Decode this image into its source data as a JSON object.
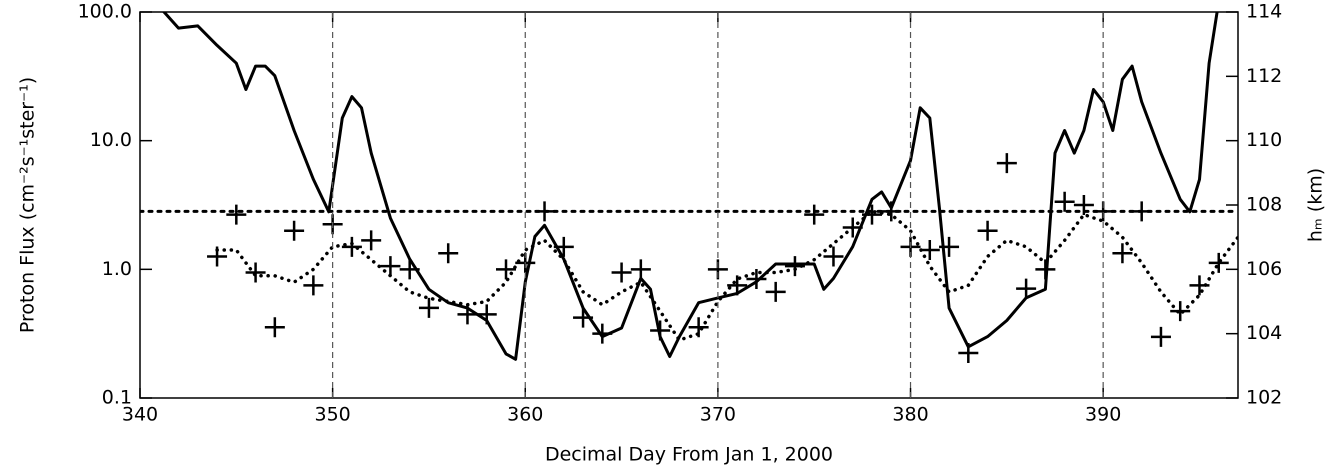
{
  "chart_data": {
    "type": "line",
    "xlabel": "Decimal Day From Jan 1, 2000",
    "ylabel": "Proton Flux (cm⁻²s⁻¹ster⁻¹)",
    "y2label": "hₘ (km)",
    "xlim": [
      340,
      397
    ],
    "xticks": [
      340,
      350,
      360,
      370,
      380,
      390
    ],
    "ylim": [
      0.1,
      100
    ],
    "yscale": "log",
    "yticks": [
      0.1,
      {
        "value": 1,
        "label": "1.0"
      },
      {
        "value": 10,
        "label": "10.0"
      },
      {
        "value": 100,
        "label": "100.0"
      }
    ],
    "y2lim": [
      102,
      114
    ],
    "y2ticks": [
      102,
      104,
      106,
      108,
      110,
      112,
      114
    ],
    "grid": "x-dashed",
    "hlines": [
      {
        "value": 107.8,
        "axis": "y2",
        "style": "dotted",
        "color": "#000000"
      }
    ],
    "series": [
      {
        "style": "solid",
        "color": "#000000",
        "x": [
          341,
          342,
          343,
          344,
          345,
          345.5,
          346,
          346.5,
          347,
          348,
          349,
          349.8,
          350.5,
          351,
          351.5,
          352,
          353,
          354,
          355,
          356,
          357,
          358,
          359,
          359.5,
          360,
          360.5,
          361,
          362,
          363,
          364,
          365,
          366,
          366.5,
          367,
          367.5,
          368,
          369,
          370,
          371,
          372,
          373,
          374,
          375,
          375.5,
          376,
          377,
          378,
          378.5,
          379,
          380,
          380.5,
          381,
          381.5,
          382,
          383,
          384,
          385,
          386,
          387,
          387.5,
          388,
          388.5,
          389,
          389.5,
          390,
          390.5,
          391,
          391.5,
          392,
          393,
          394,
          394.5,
          395,
          395.5,
          396
        ],
        "values": [
          110,
          75,
          78,
          55,
          40,
          25,
          38,
          38,
          32,
          12,
          5,
          2.8,
          15,
          22,
          18,
          8,
          2.5,
          1.2,
          0.7,
          0.55,
          0.5,
          0.4,
          0.22,
          0.2,
          0.8,
          1.8,
          2.2,
          1.2,
          0.5,
          0.3,
          0.35,
          0.85,
          0.7,
          0.3,
          0.21,
          0.3,
          0.55,
          0.6,
          0.65,
          0.8,
          1.1,
          1.1,
          1.1,
          0.7,
          0.85,
          1.5,
          3.5,
          4,
          3,
          7,
          18,
          15,
          3,
          0.5,
          0.25,
          0.3,
          0.4,
          0.6,
          0.7,
          8,
          12,
          8,
          12,
          25,
          20,
          12,
          30,
          38,
          20,
          8,
          3.5,
          2.8,
          5,
          40,
          120
        ]
      },
      {
        "style": "dotted",
        "axis": "y2",
        "color": "#000000",
        "x": [
          344,
          345,
          346,
          347,
          348,
          349,
          350,
          351,
          352,
          353,
          354,
          355,
          356,
          357,
          358,
          359,
          360,
          361,
          362,
          363,
          364,
          365,
          366,
          367,
          368,
          369,
          370,
          371,
          372,
          373,
          374,
          375,
          376,
          377,
          378,
          379,
          380,
          381,
          382,
          383,
          384,
          385,
          386,
          387,
          388,
          389,
          390,
          391,
          392,
          393,
          394,
          395,
          396,
          397
        ],
        "values": [
          106.6,
          106.6,
          105.8,
          105.8,
          105.6,
          106,
          106.7,
          106.8,
          106.3,
          105.8,
          105.3,
          105.1,
          105,
          104.9,
          105,
          105.6,
          106.6,
          106.9,
          106.3,
          105.3,
          104.9,
          105.3,
          105.6,
          104.7,
          103.8,
          104,
          105,
          105.7,
          105.9,
          105.9,
          106,
          106.3,
          106.8,
          107.3,
          107.8,
          107.7,
          107.2,
          106.1,
          105.3,
          105.5,
          106.4,
          106.9,
          106.7,
          106.2,
          106.9,
          107.7,
          107.5,
          107,
          106.2,
          105.3,
          104.6,
          105.2,
          106.2,
          107
        ]
      },
      {
        "style": "plus",
        "axis": "y2",
        "color": "#000000",
        "x": [
          344,
          345,
          346,
          347,
          348,
          349,
          350,
          351,
          352,
          353,
          354,
          355,
          356,
          357,
          358,
          359,
          360,
          361,
          362,
          363,
          364,
          365,
          366,
          367,
          369,
          370,
          371,
          372,
          373,
          374,
          375,
          376,
          377,
          378,
          379,
          380,
          381,
          382,
          383,
          384,
          385,
          386,
          387,
          388,
          389,
          390,
          391,
          392,
          393,
          394,
          395,
          396
        ],
        "values": [
          106.4,
          107.7,
          105.9,
          104.2,
          107.2,
          105.5,
          107.4,
          106.7,
          106.9,
          106.1,
          106,
          104.8,
          106.5,
          104.6,
          104.6,
          106,
          106.2,
          107.8,
          106.7,
          104.5,
          104,
          105.9,
          106,
          104.1,
          104.2,
          106,
          105.5,
          105.7,
          105.3,
          106.1,
          107.7,
          106.4,
          107.3,
          107.7,
          107.8,
          106.7,
          106.6,
          106.7,
          103.4,
          107.2,
          109.3,
          105.4,
          106,
          108.1,
          108,
          107.8,
          106.5,
          107.8,
          103.9,
          104.7,
          105.5,
          106.2
        ]
      }
    ]
  }
}
